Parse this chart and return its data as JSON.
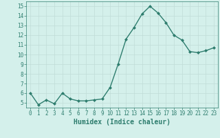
{
  "x": [
    0,
    1,
    2,
    3,
    4,
    5,
    6,
    7,
    8,
    9,
    10,
    11,
    12,
    13,
    14,
    15,
    16,
    17,
    18,
    19,
    20,
    21,
    22,
    23
  ],
  "y": [
    6.0,
    4.8,
    5.3,
    4.9,
    6.0,
    5.4,
    5.2,
    5.2,
    5.3,
    5.4,
    6.6,
    9.0,
    11.6,
    12.8,
    14.2,
    15.0,
    14.3,
    13.3,
    12.0,
    11.5,
    10.3,
    10.2,
    10.4,
    10.7
  ],
  "line_color": "#2e7d6e",
  "marker": "D",
  "marker_size": 2,
  "bg_color": "#d4f0eb",
  "grid_color": "#c0ddd8",
  "xlabel": "Humidex (Indice chaleur)",
  "ylim": [
    4.5,
    15.5
  ],
  "xlim": [
    -0.5,
    23.5
  ],
  "yticks": [
    5,
    6,
    7,
    8,
    9,
    10,
    11,
    12,
    13,
    14,
    15
  ],
  "xticks": [
    0,
    1,
    2,
    3,
    4,
    5,
    6,
    7,
    8,
    9,
    10,
    11,
    12,
    13,
    14,
    15,
    16,
    17,
    18,
    19,
    20,
    21,
    22,
    23
  ],
  "tick_color": "#2e7d6e",
  "label_fontsize": 5.5,
  "xlabel_fontsize": 7,
  "line_width": 1.0
}
